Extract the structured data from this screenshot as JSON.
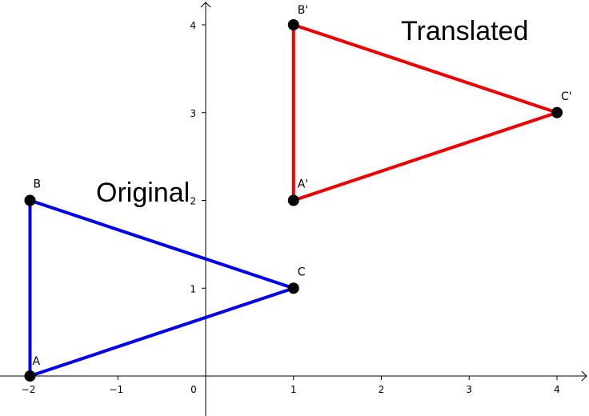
{
  "axes": {
    "x_ticks": [
      "−2",
      "−1",
      "0",
      "1",
      "2",
      "3",
      "4"
    ],
    "y_ticks": [
      "1",
      "2",
      "3",
      "4"
    ],
    "x_values": [
      -2,
      -1,
      0,
      1,
      2,
      3,
      4
    ],
    "y_values": [
      1,
      2,
      3,
      4
    ]
  },
  "captions": {
    "original": "Original",
    "translated": "Translated"
  },
  "triangles": {
    "original": {
      "color": "#0000ee",
      "points": [
        {
          "label": "A",
          "x": -2,
          "y": 0
        },
        {
          "label": "B",
          "x": -2,
          "y": 2
        },
        {
          "label": "C",
          "x": 1,
          "y": 1
        }
      ]
    },
    "translated": {
      "color": "#ee0000",
      "points": [
        {
          "label": "A'",
          "x": 1,
          "y": 2
        },
        {
          "label": "B'",
          "x": 1,
          "y": 4
        },
        {
          "label": "C'",
          "x": 4,
          "y": 3
        }
      ]
    }
  }
}
